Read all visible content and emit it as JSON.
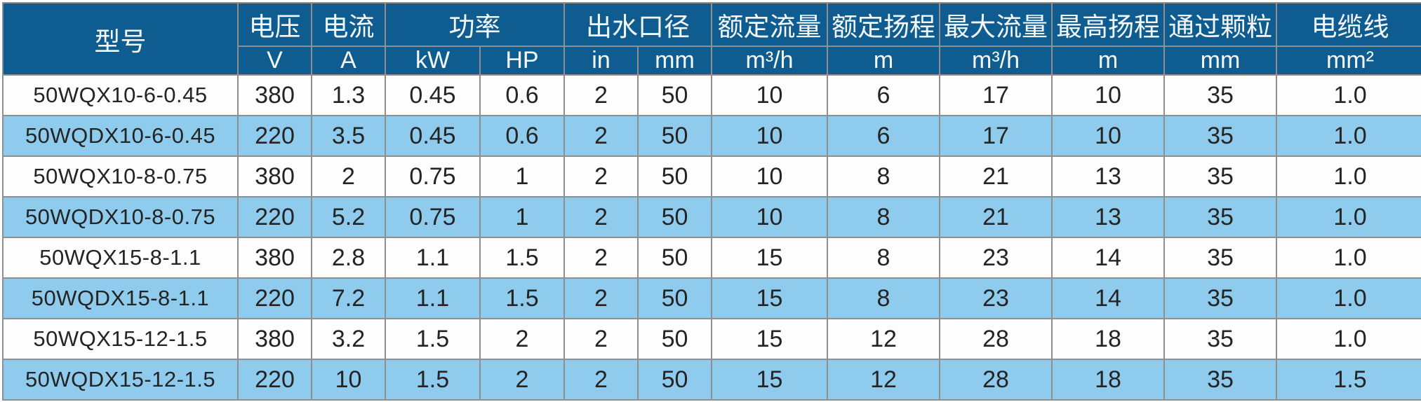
{
  "colors": {
    "header_bg": "#0f5c90",
    "header_text": "#f4f8fb",
    "row_bg": "#fdfdfd",
    "row_alt_bg": "#8fcbec",
    "border": "#8f8f8f",
    "body_text": "#242424"
  },
  "chart_data": {
    "type": "table",
    "header_row1": [
      {
        "label": "型号"
      },
      {
        "label": "电压"
      },
      {
        "label": "电流"
      },
      {
        "label": "功率"
      },
      {
        "label": "出水口径"
      },
      {
        "label": "额定流量"
      },
      {
        "label": "额定扬程"
      },
      {
        "label": "最大流量"
      },
      {
        "label": "最高扬程"
      },
      {
        "label": "通过颗粒"
      },
      {
        "label": "电缆线"
      }
    ],
    "header_row2_units": [
      "V",
      "A",
      "kW",
      "HP",
      "in",
      "mm",
      "m³/h",
      "m",
      "m³/h",
      "m",
      "mm",
      "mm²"
    ],
    "rows": [
      [
        "50WQX10-6-0.45",
        "380",
        "1.3",
        "0.45",
        "0.6",
        "2",
        "50",
        "10",
        "6",
        "17",
        "10",
        "35",
        "1.0"
      ],
      [
        "50WQDX10-6-0.45",
        "220",
        "3.5",
        "0.45",
        "0.6",
        "2",
        "50",
        "10",
        "6",
        "17",
        "10",
        "35",
        "1.0"
      ],
      [
        "50WQX10-8-0.75",
        "380",
        "2",
        "0.75",
        "1",
        "2",
        "50",
        "10",
        "8",
        "21",
        "13",
        "35",
        "1.0"
      ],
      [
        "50WQDX10-8-0.75",
        "220",
        "5.2",
        "0.75",
        "1",
        "2",
        "50",
        "10",
        "8",
        "21",
        "13",
        "35",
        "1.0"
      ],
      [
        "50WQX15-8-1.1",
        "380",
        "2.8",
        "1.1",
        "1.5",
        "2",
        "50",
        "15",
        "8",
        "23",
        "14",
        "35",
        "1.0"
      ],
      [
        "50WQDX15-8-1.1",
        "220",
        "7.2",
        "1.1",
        "1.5",
        "2",
        "50",
        "15",
        "8",
        "23",
        "14",
        "35",
        "1.0"
      ],
      [
        "50WQX15-12-1.5",
        "380",
        "3.2",
        "1.5",
        "2",
        "2",
        "50",
        "15",
        "12",
        "28",
        "18",
        "35",
        "1.0"
      ],
      [
        "50WQDX15-12-1.5",
        "220",
        "10",
        "1.5",
        "2",
        "2",
        "50",
        "15",
        "12",
        "28",
        "18",
        "35",
        "1.5"
      ]
    ]
  }
}
